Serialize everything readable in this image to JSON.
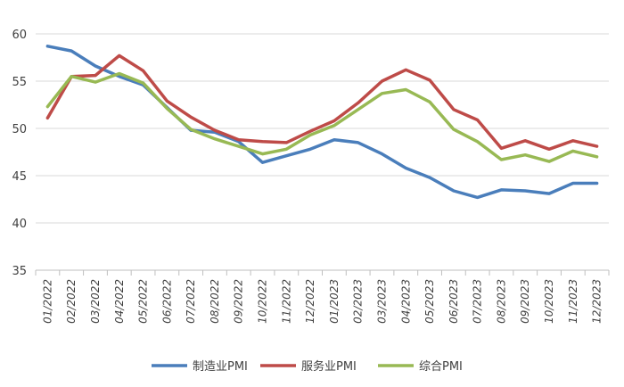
{
  "chart_data": {
    "type": "line",
    "title": "",
    "xlabel": "",
    "ylabel": "",
    "ylim": [
      35,
      60
    ],
    "yticks": [
      35,
      40,
      45,
      50,
      55,
      60
    ],
    "grid": true,
    "legend_position": "bottom",
    "categories": [
      "01/2022",
      "02/2022",
      "03/2022",
      "04/2022",
      "05/2022",
      "06/2022",
      "07/2022",
      "08/2022",
      "09/2022",
      "10/2022",
      "11/2022",
      "12/2022",
      "01/2023",
      "02/2023",
      "03/2023",
      "04/2023",
      "05/2023",
      "06/2023",
      "07/2023",
      "08/2023",
      "09/2023",
      "10/2023",
      "11/2023",
      "12/2023"
    ],
    "series": [
      {
        "name": "制造业PMI",
        "color": "#4a7ebb",
        "values": [
          58.7,
          58.2,
          56.6,
          55.5,
          54.6,
          52.2,
          49.8,
          49.6,
          48.6,
          46.4,
          47.1,
          47.8,
          48.8,
          48.5,
          47.3,
          45.8,
          44.8,
          43.4,
          42.7,
          43.5,
          43.4,
          43.1,
          44.2,
          44.2
        ]
      },
      {
        "name": "服务业PMI",
        "color": "#be4b48",
        "values": [
          51.1,
          55.5,
          55.6,
          57.7,
          56.1,
          52.9,
          51.2,
          49.8,
          48.8,
          48.6,
          48.5,
          49.7,
          50.8,
          52.7,
          55.0,
          56.2,
          55.1,
          52.0,
          50.9,
          47.9,
          48.7,
          47.8,
          48.7,
          48.1
        ]
      },
      {
        "name": "综合PMI",
        "color": "#98b954",
        "values": [
          52.3,
          55.5,
          54.9,
          55.8,
          54.8,
          52.1,
          49.9,
          48.9,
          48.1,
          47.3,
          47.8,
          49.3,
          50.3,
          52.0,
          53.7,
          54.1,
          52.8,
          49.9,
          48.6,
          46.7,
          47.2,
          46.5,
          47.6,
          47.0
        ]
      }
    ]
  }
}
